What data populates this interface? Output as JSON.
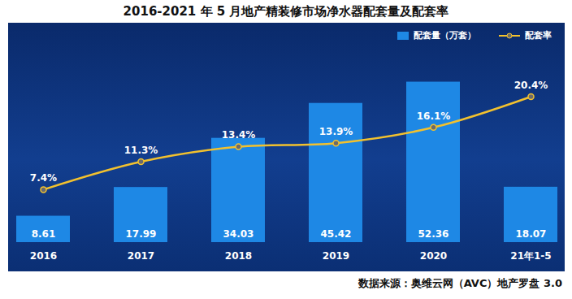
{
  "chart_data": {
    "type": "bar",
    "title": "2016-2021 年 5 月地产精装修市场净水器配套量及配套率",
    "source": "数据来源：奥维云网（AVC）地产罗盘 3.0",
    "categories": [
      "2016",
      "2017",
      "2018",
      "2019",
      "2020",
      "21年1-5"
    ],
    "series": [
      {
        "name": "配套量（万套）",
        "type": "bar",
        "color": "#1e88e5",
        "values": [
          8.61,
          17.99,
          34.03,
          45.42,
          52.36,
          18.07
        ]
      },
      {
        "name": "配套率",
        "type": "line",
        "axis": "y2",
        "color": "#f2c12e",
        "marker": "circle",
        "values": [
          7.4,
          11.3,
          13.4,
          13.9,
          16.1,
          20.4
        ],
        "value_labels": [
          "7.4%",
          "11.3%",
          "13.4%",
          "13.9%",
          "16.1%",
          "20.4%"
        ]
      }
    ],
    "ylim": [
      0,
      70
    ],
    "y2lim": [
      0,
      30
    ],
    "data_labels": true,
    "tick_labels": "x",
    "legend": "top-right",
    "grid": false
  }
}
